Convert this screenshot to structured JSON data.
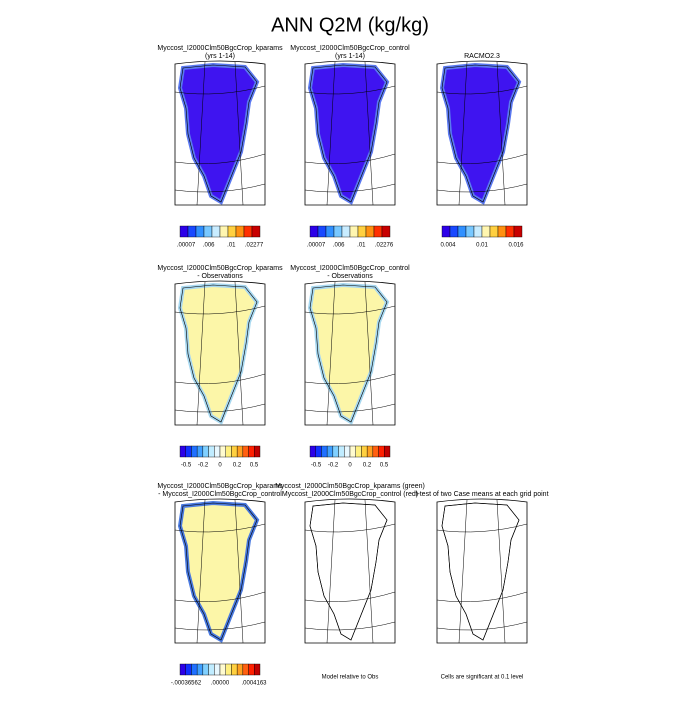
{
  "title": "ANN Q2M (kg/kg)",
  "panels": [
    {
      "title": [
        "Myccost_I2000Clm50BgcCrop_kparams",
        "(yrs 1-14)"
      ],
      "colorbar": [
        ".00007",
        ".006",
        ".01",
        ".02277"
      ]
    },
    {
      "title": [
        "Myccost_I2000Clm50BgcCrop_control",
        "(yrs 1-14)"
      ],
      "colorbar": [
        ".00007",
        ".006",
        ".01",
        ".02276"
      ]
    },
    {
      "title": [
        "RACMO2.3"
      ],
      "colorbar": [
        "0.004",
        "0.01",
        "0.016"
      ]
    },
    {
      "title": [
        "Myccost_I2000Clm50BgcCrop_kparams",
        "- Observations"
      ],
      "colorbar": [
        "-0.5",
        "-0.2",
        "0",
        "0.2",
        "0.5"
      ]
    },
    {
      "title": [
        "Myccost_I2000Clm50BgcCrop_control",
        "- Observations"
      ],
      "colorbar": [
        "-0.5",
        "-0.2",
        "0",
        "0.2",
        "0.5"
      ]
    },
    {
      "title": [
        "Myccost_I2000Clm50BgcCrop_kparams",
        "- Myccost_I2000Clm50BgcCrop_control"
      ],
      "colorbar": [
        "-.00036562",
        ".00000",
        ".0004163"
      ]
    },
    {
      "title": [
        "Myccost_I2000Clm50BgcCrop_kparams (green)",
        "Myccost_I2000Clm50BgcCrop_control (red)"
      ],
      "note": "Model relative to Obs"
    },
    {
      "title": [
        "t-test of two Case means at each grid point"
      ],
      "note": "Cells are significant at 0.1 level"
    }
  ]
}
